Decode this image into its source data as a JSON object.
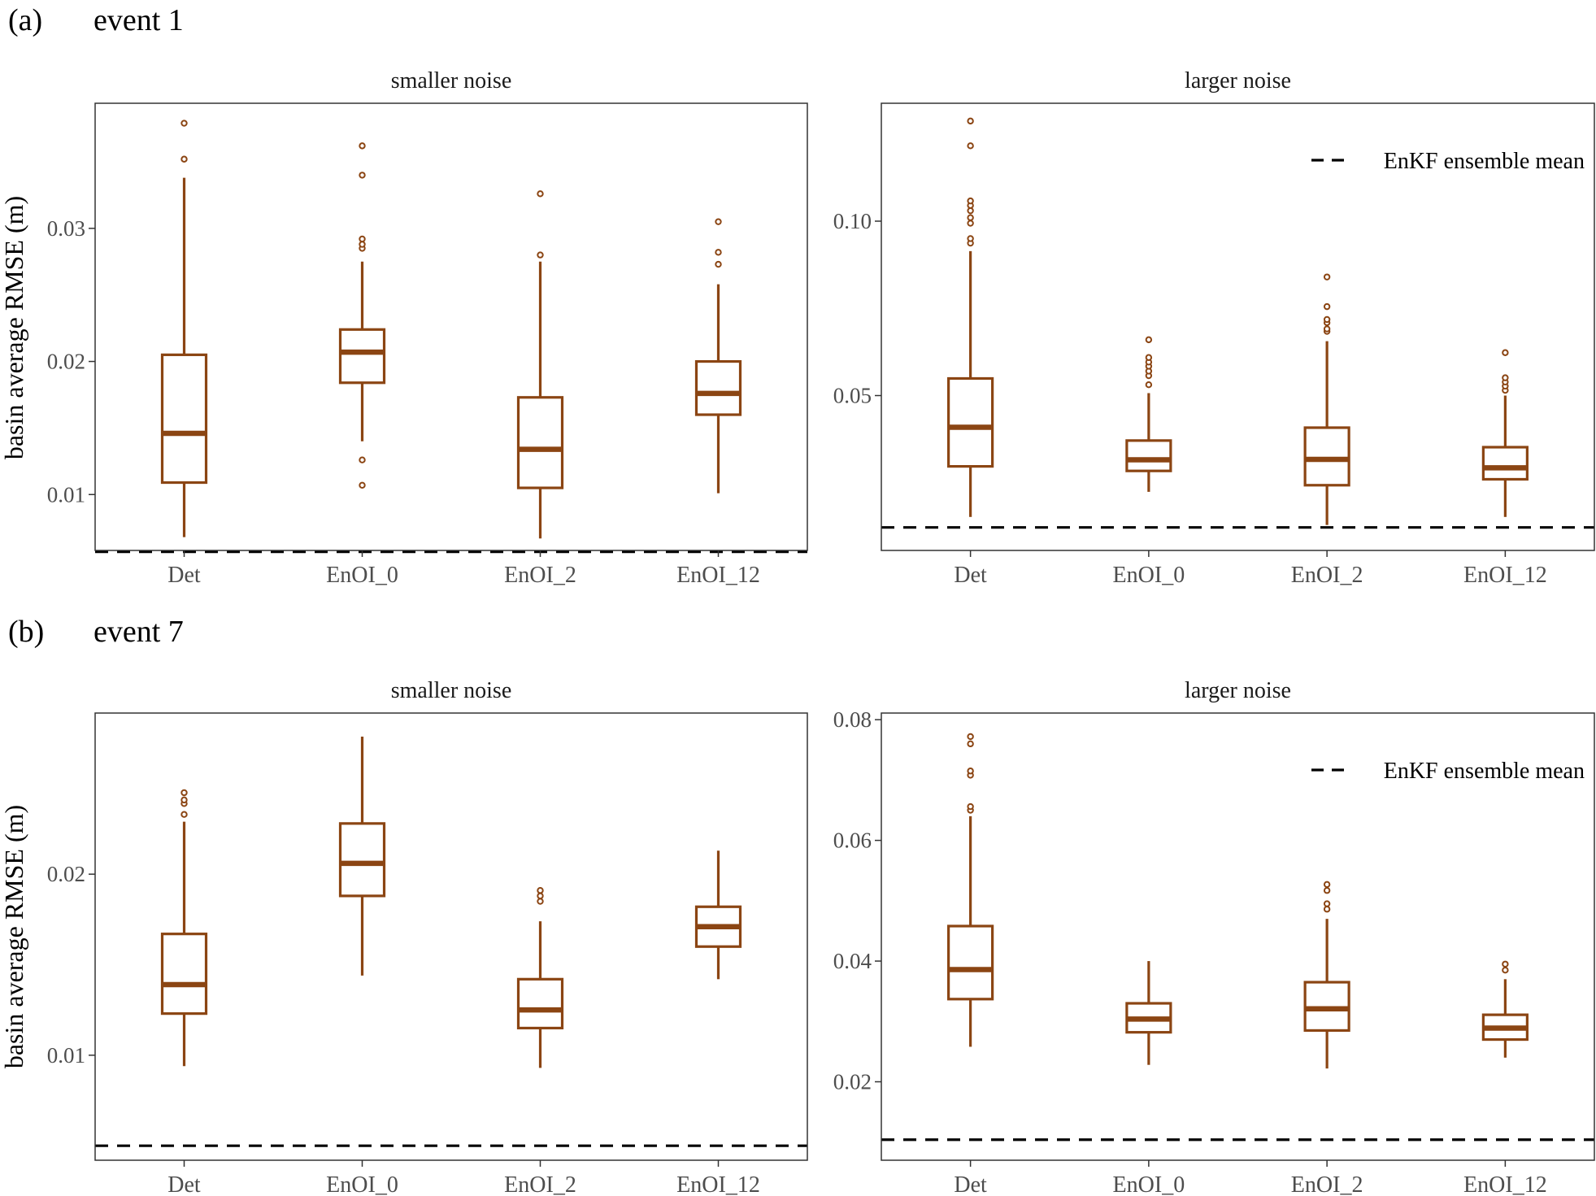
{
  "colors": {
    "box": "#8B4513",
    "mean_line": "#000000",
    "frame": "#333333",
    "tick_text": "#4d4d4d"
  },
  "y_axis_label": "basin average RMSE (m)",
  "legend_label": "EnKF ensemble mean",
  "sections": [
    {
      "tag": "(a)",
      "title": "event 1"
    },
    {
      "tag": "(b)",
      "title": "event 7"
    }
  ],
  "chart_data": [
    {
      "type": "box",
      "section": "(a)",
      "event": "event 1",
      "panel_title": "smaller noise",
      "categories": [
        "Det",
        "EnOI_0",
        "EnOI_2",
        "EnOI_12"
      ],
      "ylim": [
        0.0058,
        0.0394
      ],
      "yticks": [
        0.01,
        0.02,
        0.03
      ],
      "ytick_labels": [
        "0.01",
        "0.02",
        "0.03"
      ],
      "legend": false,
      "grid": false,
      "enkf_ensemble_mean": 0.0057,
      "boxes": [
        {
          "category": "Det",
          "whisker_low": 0.0068,
          "q1": 0.0109,
          "median": 0.0146,
          "q3": 0.0205,
          "whisker_high": 0.0338,
          "outliers": [
            0.0352,
            0.0379
          ]
        },
        {
          "category": "EnOI_0",
          "whisker_low": 0.014,
          "q1": 0.0184,
          "median": 0.0207,
          "q3": 0.0224,
          "whisker_high": 0.0275,
          "outliers": [
            0.0107,
            0.0126,
            0.0285,
            0.0288,
            0.0292,
            0.034,
            0.0362
          ]
        },
        {
          "category": "EnOI_2",
          "whisker_low": 0.0067,
          "q1": 0.0105,
          "median": 0.0134,
          "q3": 0.0173,
          "whisker_high": 0.0275,
          "outliers": [
            0.028,
            0.0326
          ]
        },
        {
          "category": "EnOI_12",
          "whisker_low": 0.0101,
          "q1": 0.016,
          "median": 0.0176,
          "q3": 0.02,
          "whisker_high": 0.0258,
          "outliers": [
            0.0273,
            0.0282,
            0.0305
          ]
        }
      ]
    },
    {
      "type": "box",
      "section": "(a)",
      "event": "event 1",
      "panel_title": "larger noise",
      "categories": [
        "Det",
        "EnOI_0",
        "EnOI_2",
        "EnOI_12"
      ],
      "ylim": [
        0.0056,
        0.1338
      ],
      "yticks": [
        0.05,
        0.1
      ],
      "ytick_labels": [
        "0.05",
        "0.10"
      ],
      "legend": true,
      "legend_position": "top-right",
      "grid": false,
      "enkf_ensemble_mean": 0.0122,
      "boxes": [
        {
          "category": "Det",
          "whisker_low": 0.0152,
          "q1": 0.0297,
          "median": 0.0409,
          "q3": 0.0549,
          "whisker_high": 0.0914,
          "outliers": [
            0.0937,
            0.095,
            0.0994,
            0.101,
            0.103,
            0.1045,
            0.1058,
            0.1216,
            0.1287
          ]
        },
        {
          "category": "EnOI_0",
          "whisker_low": 0.0224,
          "q1": 0.0284,
          "median": 0.0316,
          "q3": 0.0371,
          "whisker_high": 0.0507,
          "outliers": [
            0.0531,
            0.0557,
            0.057,
            0.0584,
            0.0596,
            0.0609,
            0.066
          ]
        },
        {
          "category": "EnOI_2",
          "whisker_low": 0.0129,
          "q1": 0.0243,
          "median": 0.0317,
          "q3": 0.0408,
          "whisker_high": 0.0656,
          "outliers": [
            0.0684,
            0.0691,
            0.0709,
            0.0718,
            0.0755,
            0.084
          ]
        },
        {
          "category": "EnOI_12",
          "whisker_low": 0.0152,
          "q1": 0.026,
          "median": 0.0293,
          "q3": 0.0352,
          "whisker_high": 0.05,
          "outliers": [
            0.0515,
            0.0527,
            0.0539,
            0.0551,
            0.0623
          ]
        }
      ]
    },
    {
      "type": "box",
      "section": "(b)",
      "event": "event 7",
      "panel_title": "smaller noise",
      "categories": [
        "Det",
        "EnOI_0",
        "EnOI_2",
        "EnOI_12"
      ],
      "ylim": [
        0.0042,
        0.0289
      ],
      "yticks": [
        0.01,
        0.02
      ],
      "ytick_labels": [
        "0.01",
        "0.02"
      ],
      "legend": false,
      "grid": false,
      "enkf_ensemble_mean": 0.005,
      "boxes": [
        {
          "category": "Det",
          "whisker_low": 0.0094,
          "q1": 0.0123,
          "median": 0.0139,
          "q3": 0.0167,
          "whisker_high": 0.0229,
          "outliers": [
            0.0233,
            0.0239,
            0.0241,
            0.0245
          ]
        },
        {
          "category": "EnOI_0",
          "whisker_low": 0.0144,
          "q1": 0.0188,
          "median": 0.0206,
          "q3": 0.0228,
          "whisker_high": 0.0276,
          "outliers": []
        },
        {
          "category": "EnOI_2",
          "whisker_low": 0.0093,
          "q1": 0.0115,
          "median": 0.0125,
          "q3": 0.0142,
          "whisker_high": 0.0174,
          "outliers": [
            0.0185,
            0.0188,
            0.0191
          ]
        },
        {
          "category": "EnOI_12",
          "whisker_low": 0.0142,
          "q1": 0.016,
          "median": 0.0171,
          "q3": 0.0182,
          "whisker_high": 0.0213,
          "outliers": []
        }
      ]
    },
    {
      "type": "box",
      "section": "(b)",
      "event": "event 7",
      "panel_title": "larger noise",
      "categories": [
        "Det",
        "EnOI_0",
        "EnOI_2",
        "EnOI_12"
      ],
      "ylim": [
        0.007,
        0.0811
      ],
      "yticks": [
        0.02,
        0.04,
        0.06,
        0.08
      ],
      "ytick_labels": [
        "0.02",
        "0.04",
        "0.06",
        "0.08"
      ],
      "legend": true,
      "legend_position": "top-right",
      "grid": false,
      "enkf_ensemble_mean": 0.0104,
      "boxes": [
        {
          "category": "Det",
          "whisker_low": 0.0258,
          "q1": 0.0337,
          "median": 0.0386,
          "q3": 0.0458,
          "whisker_high": 0.064,
          "outliers": [
            0.065,
            0.0656,
            0.0708,
            0.0715,
            0.076,
            0.0772
          ]
        },
        {
          "category": "EnOI_0",
          "whisker_low": 0.0228,
          "q1": 0.0282,
          "median": 0.0304,
          "q3": 0.033,
          "whisker_high": 0.04,
          "outliers": []
        },
        {
          "category": "EnOI_2",
          "whisker_low": 0.0222,
          "q1": 0.0285,
          "median": 0.0321,
          "q3": 0.0365,
          "whisker_high": 0.047,
          "outliers": [
            0.0486,
            0.0495,
            0.0517,
            0.0527
          ]
        },
        {
          "category": "EnOI_12",
          "whisker_low": 0.024,
          "q1": 0.027,
          "median": 0.0289,
          "q3": 0.0311,
          "whisker_high": 0.037,
          "outliers": [
            0.0385,
            0.0395
          ]
        }
      ]
    }
  ]
}
